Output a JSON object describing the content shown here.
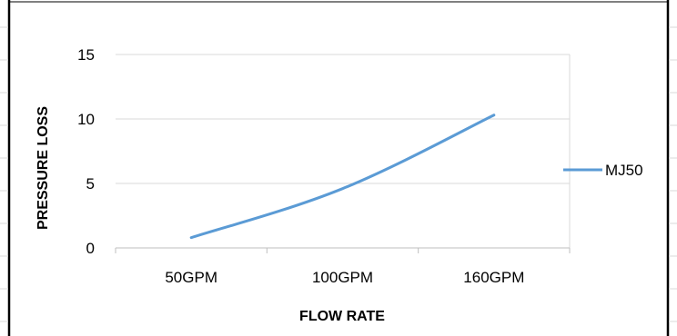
{
  "chart_data": {
    "type": "line",
    "categories": [
      "50GPM",
      "100GPM",
      "160GPM"
    ],
    "series": [
      {
        "name": "MJ50",
        "values": [
          0.8,
          4.6,
          10.3
        ],
        "color": "#5b9bd5"
      }
    ],
    "xlabel": "FLOW RATE",
    "ylabel": "PRESSURE  LOSS",
    "ylim": [
      0,
      15
    ],
    "yticks": [
      0,
      5,
      10,
      15
    ],
    "grid": true,
    "legend": "right"
  }
}
